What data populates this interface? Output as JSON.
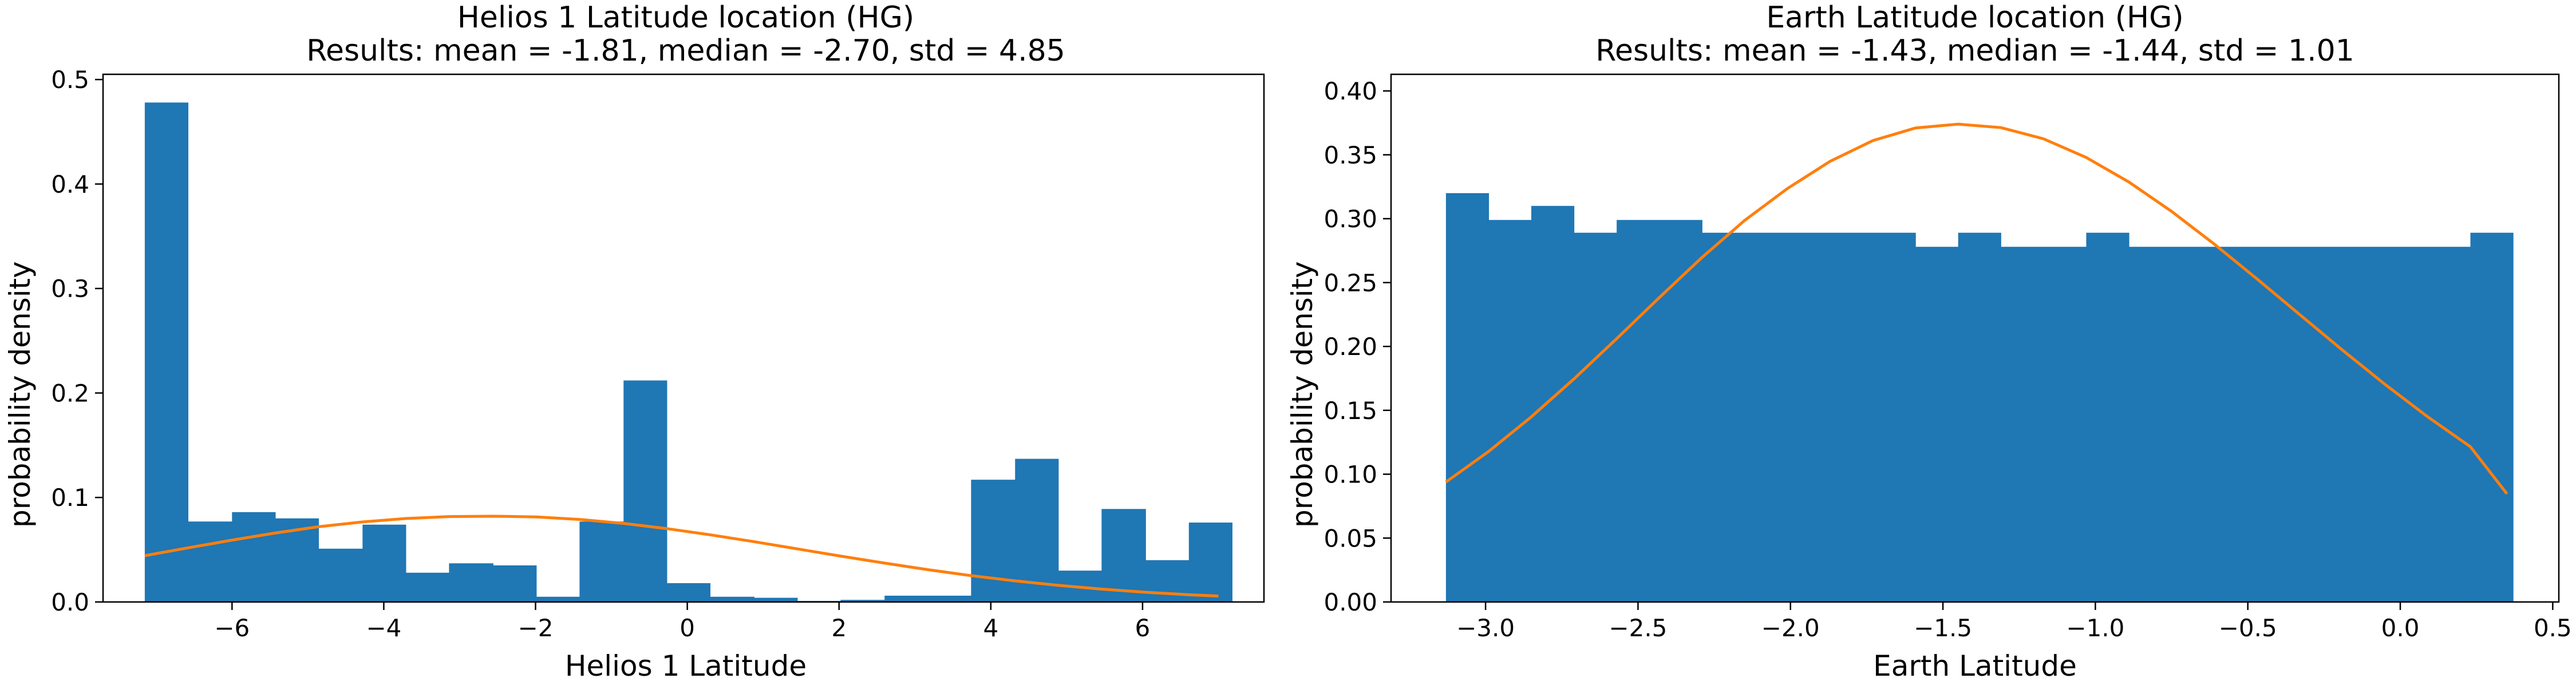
{
  "chart_data": [
    {
      "type": "bar",
      "title": "Helios 1 Latitude location (HG)",
      "subtitle": "Results: mean = -1.81, median = -2.70, std = 4.85",
      "xlabel": "Helios 1 Latitude",
      "ylabel": "probability density",
      "xlim": [
        -7.7,
        7.6
      ],
      "ylim": [
        0,
        0.505
      ],
      "xticks": [
        -6,
        -4,
        -2,
        0,
        2,
        4,
        6
      ],
      "yticks": [
        0.0,
        0.1,
        0.2,
        0.3,
        0.4,
        0.5
      ],
      "xtick_labels": [
        "−6",
        "−4",
        "−2",
        "0",
        "2",
        "4",
        "6"
      ],
      "ytick_labels": [
        "0.0",
        "0.1",
        "0.2",
        "0.3",
        "0.4",
        "0.5"
      ],
      "bin_edges": [
        -7.15,
        -6.58,
        -6.0,
        -5.43,
        -4.86,
        -4.28,
        -3.71,
        -3.14,
        -2.56,
        -1.99,
        -1.42,
        -0.84,
        -0.27,
        0.3,
        0.88,
        1.45,
        2.02,
        2.6,
        3.17,
        3.74,
        4.32,
        4.89,
        5.46,
        6.04,
        6.61,
        7.18
      ],
      "values": [
        0.478,
        0.077,
        0.086,
        0.08,
        0.051,
        0.074,
        0.028,
        0.037,
        0.035,
        0.005,
        0.077,
        0.212,
        0.018,
        0.005,
        0.004,
        0.001,
        0.002,
        0.006,
        0.006,
        0.117,
        0.137,
        0.03,
        0.089,
        0.04,
        0.076
      ],
      "fit_curve": {
        "x": [
          -7.15,
          -6.58,
          -6.0,
          -5.43,
          -4.86,
          -4.28,
          -3.71,
          -3.14,
          -2.56,
          -1.99,
          -1.42,
          -0.84,
          -0.27,
          0.3,
          0.88,
          1.45,
          2.02,
          2.6,
          3.17,
          3.74,
          4.32,
          4.89,
          5.46,
          6.04,
          6.61,
          7.0
        ],
        "y": [
          0.0443,
          0.0518,
          0.0592,
          0.066,
          0.072,
          0.0766,
          0.0799,
          0.0817,
          0.0821,
          0.0814,
          0.079,
          0.0752,
          0.0702,
          0.0643,
          0.0577,
          0.0508,
          0.0439,
          0.0372,
          0.0309,
          0.0252,
          0.0202,
          0.0159,
          0.0123,
          0.0093,
          0.0069,
          0.0057
        ]
      },
      "colors": {
        "bars": "#1f77b4",
        "curve": "#ff7f0e"
      }
    },
    {
      "type": "bar",
      "title": "Earth Latitude location (HG)",
      "subtitle": "Results: mean = -1.43, median = -1.44, std = 1.01",
      "xlabel": "Earth Latitude",
      "ylabel": "probability density",
      "xlim": [
        -3.31,
        0.52
      ],
      "ylim": [
        0,
        0.413
      ],
      "xticks": [
        -3.0,
        -2.5,
        -2.0,
        -1.5,
        -1.0,
        -0.5,
        0.0,
        0.5
      ],
      "yticks": [
        0.0,
        0.05,
        0.1,
        0.15,
        0.2,
        0.25,
        0.3,
        0.35,
        0.4
      ],
      "xtick_labels": [
        "−3.0",
        "−2.5",
        "−2.0",
        "−1.5",
        "−1.0",
        "−0.5",
        "0.0",
        "0.5"
      ],
      "ytick_labels": [
        "0.00",
        "0.05",
        "0.10",
        "0.15",
        "0.20",
        "0.25",
        "0.30",
        "0.35",
        "0.40"
      ],
      "bin_edges": [
        -3.13,
        -2.99,
        -2.85,
        -2.71,
        -2.57,
        -2.43,
        -2.29,
        -2.15,
        -2.01,
        -1.87,
        -1.73,
        -1.59,
        -1.45,
        -1.31,
        -1.17,
        -1.03,
        -0.89,
        -0.75,
        -0.61,
        -0.47,
        -0.33,
        -0.19,
        -0.05,
        0.09,
        0.23,
        0.37
      ],
      "values": [
        0.32,
        0.299,
        0.31,
        0.289,
        0.299,
        0.299,
        0.289,
        0.289,
        0.289,
        0.289,
        0.289,
        0.278,
        0.289,
        0.278,
        0.278,
        0.289,
        0.278,
        0.278,
        0.278,
        0.278,
        0.278,
        0.278,
        0.278,
        0.278,
        0.289
      ],
      "fit_curve": {
        "x": [
          -3.13,
          -2.99,
          -2.85,
          -2.71,
          -2.57,
          -2.43,
          -2.29,
          -2.15,
          -2.01,
          -1.87,
          -1.73,
          -1.59,
          -1.45,
          -1.31,
          -1.17,
          -1.03,
          -0.89,
          -0.75,
          -0.61,
          -0.47,
          -0.33,
          -0.19,
          -0.05,
          0.09,
          0.23,
          0.35
        ],
        "y": [
          0.0939,
          0.1178,
          0.1449,
          0.1746,
          0.2061,
          0.2383,
          0.2697,
          0.2987,
          0.3236,
          0.3449,
          0.3611,
          0.371,
          0.374,
          0.3713,
          0.3625,
          0.3479,
          0.3287,
          0.3057,
          0.2801,
          0.2529,
          0.225,
          0.1972,
          0.1703,
          0.1449,
          0.1215,
          0.0846
        ]
      },
      "colors": {
        "bars": "#1f77b4",
        "curve": "#ff7f0e"
      }
    }
  ]
}
